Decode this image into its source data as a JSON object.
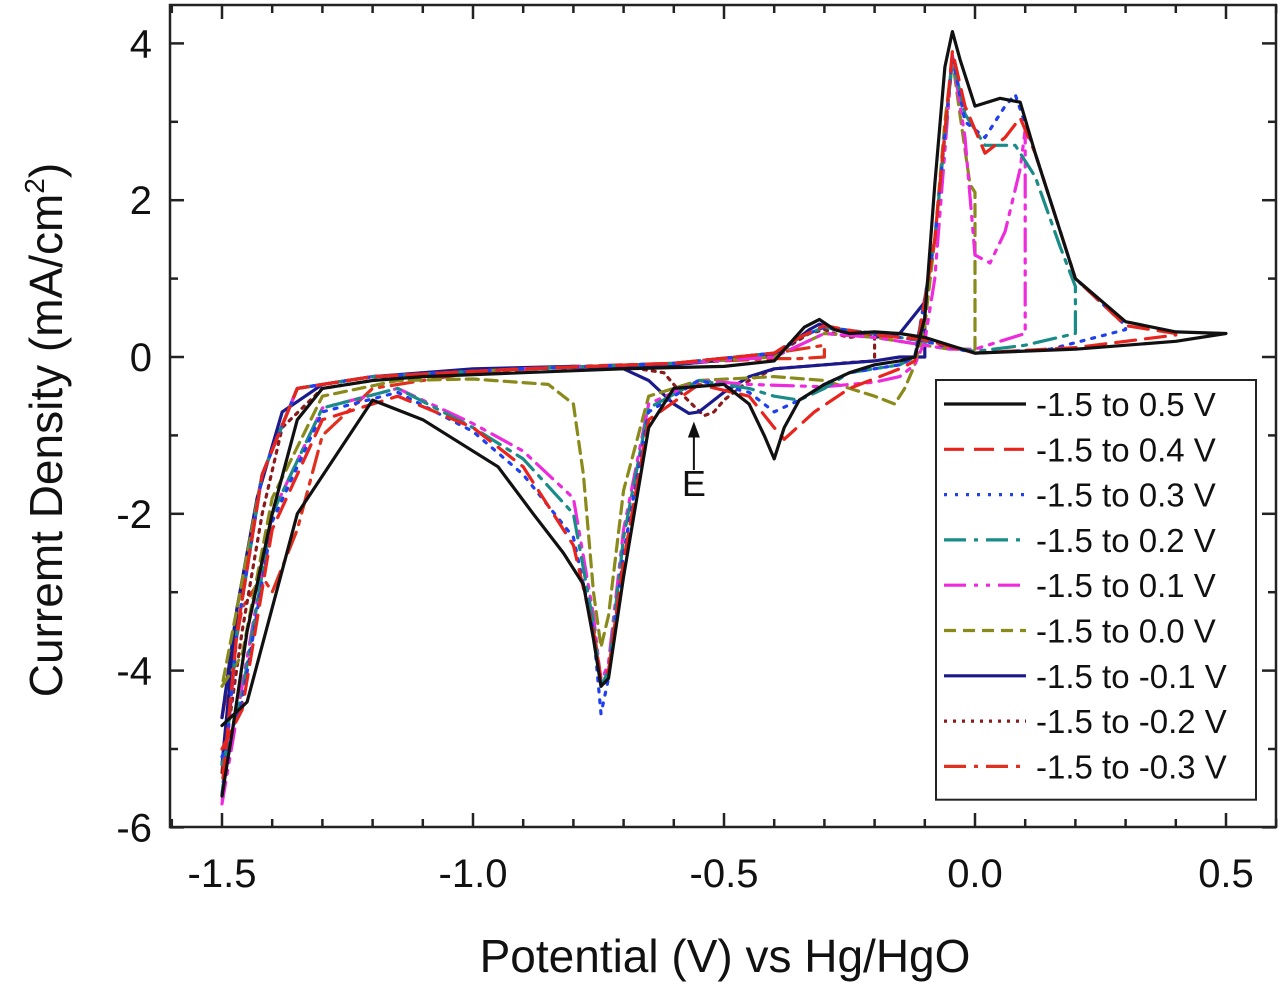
{
  "chart_data": {
    "type": "line",
    "title": "",
    "xlabel": "Potential (V) vs Hg/HgO",
    "ylabel_main": "Curremt Density (mA/cm",
    "ylabel_sup": "2",
    "ylabel_close": ")",
    "xlim": [
      -1.6,
      0.6
    ],
    "ylim": [
      -6,
      4.5
    ],
    "xticks": [
      -1.5,
      -1.0,
      -0.5,
      0.0,
      0.5
    ],
    "xtick_labels": [
      "-1.5",
      "-1.0",
      "-0.5",
      "0.0",
      "0.5"
    ],
    "yticks": [
      -6,
      -4,
      -2,
      0,
      2,
      4
    ],
    "ytick_labels": [
      "-6",
      "-4",
      "-2",
      "0",
      "2",
      "4"
    ],
    "grid": false,
    "legend_position": "lower-right",
    "annotation": {
      "text": "E",
      "x": -0.56,
      "y": -0.72
    },
    "series": [
      {
        "name": "-1.5 to 0.5 V",
        "color": "#111111",
        "dash": "solid",
        "x": [
          -1.5,
          -1.45,
          -1.35,
          -1.2,
          -1.1,
          -0.95,
          -0.88,
          -0.82,
          -0.78,
          -0.76,
          -0.745,
          -0.73,
          -0.7,
          -0.65,
          -0.6,
          -0.5,
          -0.45,
          -0.42,
          -0.4,
          -0.38,
          -0.35,
          -0.3,
          -0.25,
          -0.2,
          -0.15,
          -0.12,
          -0.1,
          -0.08,
          -0.06,
          -0.045,
          -0.03,
          0.0,
          0.05,
          0.09,
          0.12,
          0.2,
          0.3,
          0.4,
          0.5,
          0.5,
          0.4,
          0.2,
          0.0,
          -0.1,
          -0.15,
          -0.2,
          -0.25,
          -0.28,
          -0.31,
          -0.34,
          -0.4,
          -0.5,
          -0.7,
          -0.9,
          -1.1,
          -1.2,
          -1.3,
          -1.35,
          -1.4,
          -1.45,
          -1.48,
          -1.5
        ],
        "y": [
          -4.7,
          -4.4,
          -2.0,
          -0.55,
          -0.8,
          -1.4,
          -2.0,
          -2.5,
          -2.9,
          -3.6,
          -4.2,
          -4.1,
          -2.8,
          -0.9,
          -0.4,
          -0.35,
          -0.6,
          -1.0,
          -1.3,
          -0.9,
          -0.55,
          -0.35,
          -0.2,
          -0.1,
          -0.05,
          0.0,
          0.5,
          2.2,
          3.7,
          4.15,
          3.8,
          3.2,
          3.3,
          3.25,
          2.6,
          1.0,
          0.45,
          0.32,
          0.3,
          0.3,
          0.2,
          0.1,
          0.05,
          0.25,
          0.3,
          0.32,
          0.3,
          0.35,
          0.48,
          0.38,
          -0.05,
          -0.12,
          -0.15,
          -0.2,
          -0.25,
          -0.3,
          -0.4,
          -0.8,
          -2.0,
          -3.5,
          -4.8,
          -5.6
        ]
      },
      {
        "name": "-1.5 to 0.4 V",
        "color": "#e8241c",
        "dash": "20,10",
        "x": [
          -1.5,
          -1.46,
          -1.4,
          -1.3,
          -1.15,
          -1.0,
          -0.9,
          -0.8,
          -0.76,
          -0.745,
          -0.73,
          -0.7,
          -0.65,
          -0.55,
          -0.45,
          -0.4,
          -0.38,
          -0.32,
          -0.25,
          -0.15,
          -0.12,
          -0.08,
          -0.045,
          -0.02,
          0.02,
          0.06,
          0.09,
          0.12,
          0.2,
          0.3,
          0.4,
          0.4,
          0.2,
          0.0,
          -0.1,
          -0.2,
          -0.3,
          -0.35,
          -0.4,
          -0.6,
          -0.9,
          -1.2,
          -1.35,
          -1.42,
          -1.47,
          -1.5
        ],
        "y": [
          -5.0,
          -4.5,
          -2.2,
          -0.8,
          -0.5,
          -0.9,
          -1.4,
          -2.4,
          -3.5,
          -4.1,
          -4.0,
          -2.6,
          -0.8,
          -0.35,
          -0.5,
          -0.9,
          -1.05,
          -0.7,
          -0.4,
          -0.15,
          -0.05,
          1.5,
          3.9,
          3.2,
          2.6,
          2.8,
          3.05,
          2.6,
          1.0,
          0.4,
          0.3,
          0.28,
          0.12,
          0.05,
          0.22,
          0.28,
          0.4,
          0.25,
          0.05,
          -0.08,
          -0.15,
          -0.25,
          -0.4,
          -1.5,
          -3.5,
          -5.5
        ]
      },
      {
        "name": "-1.5 to 0.3 V",
        "color": "#1f3ff0",
        "dash": "3,8",
        "x": [
          -1.5,
          -1.46,
          -1.4,
          -1.3,
          -1.15,
          -1.0,
          -0.9,
          -0.8,
          -0.76,
          -0.745,
          -0.73,
          -0.7,
          -0.65,
          -0.55,
          -0.45,
          -0.4,
          -0.35,
          -0.3,
          -0.25,
          -0.15,
          -0.12,
          -0.08,
          -0.045,
          -0.02,
          0.02,
          0.06,
          0.08,
          0.12,
          0.2,
          0.3,
          0.3,
          0.15,
          0.0,
          -0.1,
          -0.2,
          -0.3,
          -0.35,
          -0.4,
          -0.6,
          -0.9,
          -1.2,
          -1.35,
          -1.42,
          -1.47,
          -1.5
        ],
        "y": [
          -5.1,
          -4.4,
          -2.1,
          -0.7,
          -0.45,
          -0.95,
          -1.5,
          -2.3,
          -3.5,
          -4.55,
          -4.1,
          -2.5,
          -0.7,
          -0.3,
          -0.45,
          -0.7,
          -0.55,
          -0.35,
          -0.2,
          -0.1,
          0.0,
          1.5,
          3.85,
          3.0,
          2.8,
          3.2,
          3.35,
          2.6,
          1.0,
          0.4,
          0.35,
          0.1,
          0.05,
          0.2,
          0.3,
          0.38,
          0.25,
          0.05,
          -0.08,
          -0.15,
          -0.25,
          -0.4,
          -1.5,
          -3.5,
          -5.6
        ]
      },
      {
        "name": "-1.5 to 0.2 V",
        "color": "#1a8c88",
        "dash": "22,8,4,8",
        "x": [
          -1.5,
          -1.46,
          -1.4,
          -1.3,
          -1.15,
          -1.0,
          -0.9,
          -0.8,
          -0.76,
          -0.745,
          -0.73,
          -0.7,
          -0.65,
          -0.55,
          -0.45,
          -0.4,
          -0.35,
          -0.3,
          -0.25,
          -0.15,
          -0.12,
          -0.08,
          -0.045,
          -0.02,
          0.02,
          0.06,
          0.08,
          0.12,
          0.17,
          0.2,
          0.2,
          0.1,
          0.0,
          -0.1,
          -0.2,
          -0.3,
          -0.35,
          -0.4,
          -0.6,
          -0.9,
          -1.2,
          -1.35,
          -1.42,
          -1.47,
          -1.5
        ],
        "y": [
          -5.2,
          -4.3,
          -2.0,
          -0.65,
          -0.4,
          -0.9,
          -1.3,
          -2.0,
          -3.4,
          -4.2,
          -4.0,
          -2.3,
          -0.65,
          -0.3,
          -0.4,
          -0.5,
          -0.55,
          -0.4,
          -0.2,
          -0.1,
          0.0,
          1.5,
          3.8,
          3.1,
          2.7,
          2.7,
          2.7,
          2.3,
          1.4,
          0.9,
          0.3,
          0.15,
          0.07,
          0.2,
          0.3,
          0.38,
          0.25,
          0.05,
          -0.08,
          -0.15,
          -0.25,
          -0.4,
          -1.5,
          -3.5,
          -5.6
        ]
      },
      {
        "name": "-1.5 to 0.1 V",
        "color": "#ee2bdc",
        "dash": "22,8,4,8,4,8",
        "x": [
          -1.5,
          -1.46,
          -1.4,
          -1.3,
          -1.15,
          -1.0,
          -0.9,
          -0.8,
          -0.76,
          -0.745,
          -0.73,
          -0.7,
          -0.65,
          -0.55,
          -0.45,
          -0.3,
          -0.2,
          -0.15,
          -0.12,
          -0.1,
          -0.08,
          -0.045,
          -0.02,
          0.0,
          0.03,
          0.06,
          0.09,
          0.1,
          0.1,
          0.05,
          0.0,
          -0.05,
          -0.1,
          -0.2,
          -0.3,
          -0.4,
          -0.6,
          -0.9,
          -1.2,
          -1.35,
          -1.42,
          -1.47,
          -1.5
        ],
        "y": [
          -5.7,
          -4.2,
          -2.0,
          -0.65,
          -0.4,
          -0.85,
          -1.2,
          -1.8,
          -3.3,
          -4.15,
          -3.9,
          -2.2,
          -0.6,
          -0.3,
          -0.35,
          -0.38,
          -0.32,
          -0.25,
          -0.1,
          0.2,
          1.0,
          3.85,
          2.8,
          1.3,
          1.2,
          1.6,
          2.4,
          2.9,
          0.3,
          0.2,
          0.1,
          0.1,
          0.15,
          0.25,
          0.3,
          0.0,
          -0.08,
          -0.15,
          -0.25,
          -0.4,
          -1.5,
          -3.5,
          -5.7
        ]
      },
      {
        "name": "-1.5 to 0.0 V",
        "color": "#8a8a1a",
        "dash": "12,7",
        "x": [
          -1.5,
          -1.46,
          -1.4,
          -1.3,
          -1.15,
          -1.0,
          -0.85,
          -0.8,
          -0.78,
          -0.76,
          -0.745,
          -0.73,
          -0.7,
          -0.65,
          -0.55,
          -0.4,
          -0.3,
          -0.2,
          -0.16,
          -0.14,
          -0.12,
          -0.1,
          -0.08,
          -0.06,
          -0.045,
          -0.03,
          -0.01,
          0.0,
          0.0,
          -0.05,
          -0.1,
          -0.2,
          -0.3,
          -0.4,
          -0.6,
          -0.9,
          -1.2,
          -1.35,
          -1.42,
          -1.47,
          -1.5
        ],
        "y": [
          -4.2,
          -3.8,
          -1.8,
          -0.5,
          -0.3,
          -0.28,
          -0.35,
          -0.6,
          -1.5,
          -3.0,
          -3.7,
          -3.3,
          -1.7,
          -0.5,
          -0.3,
          -0.25,
          -0.3,
          -0.5,
          -0.6,
          -0.4,
          -0.1,
          0.4,
          1.5,
          3.0,
          3.8,
          3.1,
          2.2,
          2.1,
          0.1,
          0.1,
          0.15,
          0.25,
          0.3,
          0.0,
          -0.08,
          -0.15,
          -0.25,
          -0.4,
          -1.5,
          -3.2,
          -4.2
        ]
      },
      {
        "name": "-1.5 to -0.1 V",
        "color": "#1a1a8c",
        "dash": "solid",
        "x": [
          -1.5,
          -1.47,
          -1.43,
          -1.38,
          -1.3,
          -1.2,
          -1.0,
          -0.8,
          -0.7,
          -0.65,
          -0.6,
          -0.57,
          -0.55,
          -0.5,
          -0.45,
          -0.4,
          -0.3,
          -0.2,
          -0.15,
          -0.12,
          -0.1,
          -0.1,
          -0.15,
          -0.2,
          -0.25,
          -0.28,
          -0.31,
          -0.33,
          -0.36,
          -0.4,
          -0.6,
          -0.9,
          -1.2,
          -1.35,
          -1.42,
          -1.47,
          -1.5
        ],
        "y": [
          -4.6,
          -3.2,
          -1.8,
          -0.7,
          -0.35,
          -0.25,
          -0.15,
          -0.12,
          -0.15,
          -0.3,
          -0.6,
          -0.72,
          -0.7,
          -0.45,
          -0.25,
          -0.15,
          -0.1,
          -0.05,
          0.0,
          0.0,
          0.0,
          0.7,
          0.3,
          0.25,
          0.3,
          0.35,
          0.42,
          0.35,
          0.2,
          0.02,
          -0.1,
          -0.15,
          -0.25,
          -0.4,
          -1.5,
          -3.2,
          -5.2
        ]
      },
      {
        "name": "-1.5 to -0.2 V",
        "color": "#8c1a1a",
        "dash": "3,6",
        "x": [
          -1.5,
          -1.46,
          -1.42,
          -1.38,
          -1.3,
          -1.1,
          -0.9,
          -0.7,
          -0.62,
          -0.58,
          -0.54,
          -0.52,
          -0.5,
          -0.45,
          -0.4,
          -0.3,
          -0.25,
          -0.2,
          -0.2,
          -0.25,
          -0.28,
          -0.3,
          -0.33,
          -0.4,
          -0.6,
          -0.9,
          -1.2,
          -1.35,
          -1.42,
          -1.47,
          -1.5
        ],
        "y": [
          -5.3,
          -3.5,
          -2.0,
          -0.9,
          -0.4,
          -0.2,
          -0.15,
          -0.12,
          -0.2,
          -0.5,
          -0.75,
          -0.7,
          -0.55,
          -0.3,
          -0.15,
          -0.1,
          -0.07,
          -0.05,
          0.3,
          0.25,
          0.3,
          0.35,
          0.3,
          0.02,
          -0.1,
          -0.15,
          -0.25,
          -0.4,
          -1.5,
          -3.2,
          -5.3
        ]
      },
      {
        "name": "-1.5 to -0.3 V",
        "color": "#e0301e",
        "dash": "22,8,4,8",
        "x": [
          -1.5,
          -1.46,
          -1.42,
          -1.4,
          -1.35,
          -1.3,
          -1.2,
          -1.0,
          -0.8,
          -0.6,
          -0.5,
          -0.4,
          -0.35,
          -0.3,
          -0.3,
          -0.33,
          -0.4,
          -0.6,
          -0.9,
          -1.2,
          -1.35,
          -1.42,
          -1.47,
          -1.5
        ],
        "y": [
          -4.6,
          -3.2,
          -2.8,
          -3.0,
          -2.2,
          -1.0,
          -0.4,
          -0.2,
          -0.12,
          -0.08,
          -0.05,
          -0.02,
          -0.02,
          0.0,
          0.15,
          0.12,
          0.05,
          -0.08,
          -0.15,
          -0.25,
          -0.4,
          -1.5,
          -3.2,
          -4.6
        ]
      }
    ]
  }
}
